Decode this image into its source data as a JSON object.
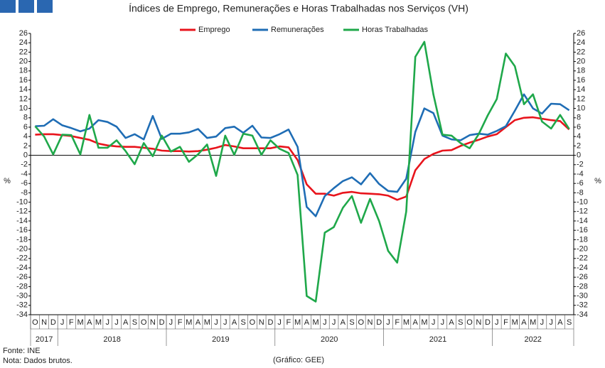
{
  "chart_data": {
    "type": "line",
    "title": "Índices de Emprego, Remunerações e Horas Trabalhadas nos Serviços (VH)",
    "ylabel": "%",
    "y2label": "%",
    "categories": [
      "O",
      "N",
      "D",
      "J",
      "F",
      "M",
      "A",
      "M",
      "J",
      "J",
      "A",
      "S",
      "O",
      "N",
      "D",
      "J",
      "F",
      "M",
      "A",
      "M",
      "J",
      "J",
      "A",
      "S",
      "O",
      "N",
      "D",
      "J",
      "F",
      "M",
      "A",
      "M",
      "J",
      "J",
      "A",
      "S",
      "O",
      "N",
      "D",
      "J",
      "F",
      "M",
      "A",
      "M",
      "J",
      "J",
      "A",
      "S",
      "O",
      "N",
      "D",
      "J",
      "F",
      "M",
      "A",
      "M",
      "J",
      "J",
      "A",
      "S"
    ],
    "years": [
      "2017",
      "2018",
      "2019",
      "2020",
      "2021",
      "2022"
    ],
    "series": [
      {
        "name": "Emprego",
        "color": "#e8141c",
        "values": [
          4.4,
          4.5,
          4.5,
          4.3,
          4.1,
          3.7,
          3.3,
          2.5,
          2.1,
          1.9,
          1.8,
          1.8,
          1.6,
          1.4,
          1.0,
          0.9,
          0.9,
          0.8,
          0.9,
          1.2,
          1.6,
          2.2,
          1.9,
          1.5,
          1.5,
          1.5,
          1.5,
          1.9,
          1.7,
          -1.0,
          -6.2,
          -8.2,
          -8.2,
          -8.6,
          -8.0,
          -7.8,
          -8.1,
          -8.2,
          -8.3,
          -8.6,
          -9.5,
          -8.8,
          -3.2,
          -0.8,
          0.3,
          1.0,
          1.1,
          2.0,
          2.7,
          3.3,
          4.0,
          4.5,
          6.0,
          7.5,
          8.0,
          8.1,
          7.8,
          7.5,
          7.3,
          5.5
        ]
      },
      {
        "name": "Remunerações",
        "color": "#1f6db5",
        "values": [
          6.2,
          6.3,
          7.7,
          6.4,
          5.8,
          5.1,
          5.7,
          7.5,
          7.1,
          6.1,
          3.7,
          4.5,
          3.4,
          8.4,
          3.5,
          4.6,
          4.6,
          4.9,
          5.6,
          3.7,
          4.0,
          5.8,
          6.1,
          4.8,
          6.3,
          3.8,
          3.7,
          4.5,
          5.5,
          1.8,
          -11.0,
          -13.0,
          -8.7,
          -7.0,
          -5.5,
          -4.7,
          -6.2,
          -3.8,
          -6.1,
          -7.6,
          -7.8,
          -5.0,
          5.0,
          10.0,
          9.0,
          4.2,
          3.4,
          3.2,
          4.3,
          4.6,
          4.4,
          5.2,
          6.2,
          9.5,
          13.0,
          10.0,
          8.9,
          11.0,
          10.9,
          9.6
        ]
      },
      {
        "name": "Horas Trabalhadas",
        "color": "#1fa84a",
        "values": [
          6.2,
          4.0,
          0.2,
          4.4,
          4.3,
          0.2,
          8.6,
          1.6,
          1.6,
          3.2,
          0.9,
          -1.9,
          2.6,
          -0.2,
          4.2,
          0.8,
          1.8,
          -1.4,
          0.2,
          2.3,
          -4.4,
          4.2,
          0.1,
          4.6,
          4.2,
          0.1,
          3.2,
          1.4,
          0.5,
          -4.2,
          -30.0,
          -31.2,
          -16.5,
          -15.3,
          -11.2,
          -8.7,
          -14.4,
          -9.3,
          -14.0,
          -20.4,
          -22.9,
          -12.0,
          21.0,
          24.2,
          13.0,
          4.4,
          4.2,
          2.6,
          1.5,
          4.5,
          8.5,
          12.0,
          21.7,
          19.0,
          10.9,
          13.0,
          7.2,
          5.7,
          8.6,
          5.6
        ]
      }
    ],
    "ylim": [
      -34,
      26
    ],
    "yticks": [
      -34,
      -32,
      -30,
      -28,
      -26,
      -24,
      -22,
      -20,
      -18,
      -16,
      -14,
      -12,
      -10,
      -8,
      -6,
      -4,
      -2,
      0,
      2,
      4,
      6,
      8,
      10,
      12,
      14,
      16,
      18,
      20,
      22,
      24,
      26
    ],
    "y2lim": [
      -34,
      26
    ],
    "y2ticks": [
      -34,
      -32,
      -30,
      -28,
      -26,
      -24,
      -22,
      -20,
      -18,
      -16,
      -14,
      -12,
      -10,
      -8,
      -6,
      -4,
      -2,
      0,
      2,
      4,
      6,
      8,
      10,
      12,
      14,
      16,
      18,
      20,
      22,
      24,
      26
    ],
    "legend": "top",
    "notes": [
      "Fonte: INE",
      "Nota: Dados brutos."
    ],
    "credit": "(Gráfico: GEE)"
  }
}
